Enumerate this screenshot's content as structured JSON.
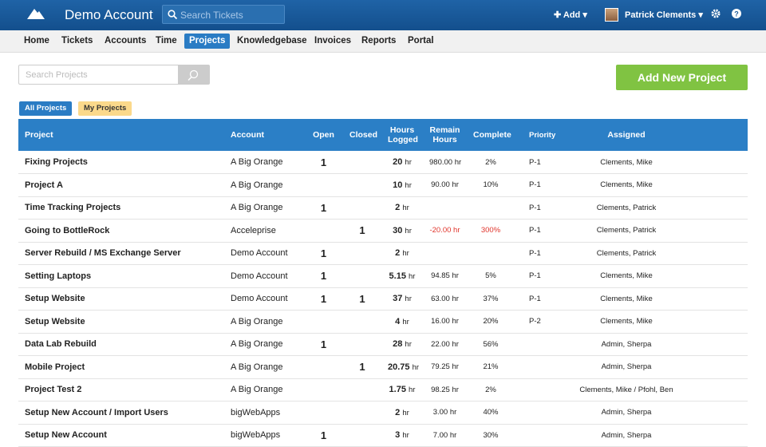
{
  "header": {
    "account": "Demo Account",
    "search_placeholder": "Search Tickets",
    "add": "Add",
    "user": "Patrick Clements"
  },
  "nav": [
    "Home",
    "Tickets",
    "Accounts",
    "Time",
    "Projects",
    "Knowledgebase",
    "Invoices",
    "Reports",
    "Portal"
  ],
  "search_placeholder": "Search Projects",
  "add_button": "Add New Project",
  "filters": [
    "All Projects",
    "My Projects"
  ],
  "table": {
    "columns": [
      "Project",
      "Account",
      "Open",
      "Closed",
      "Hours Logged",
      "Remain Hours",
      "Complete",
      "Priority",
      "Assigned"
    ],
    "rows": [
      [
        "Fixing Projects",
        "A Big Orange",
        "1",
        null,
        "20",
        "hr",
        "980.00 hr",
        "2%",
        "P-1",
        "Clements, Mike"
      ],
      [
        "Project A",
        "A Big Orange",
        null,
        null,
        "10",
        "hr",
        "90.00 hr",
        "10%",
        "P-1",
        "Clements, Mike"
      ],
      [
        "Time Tracking Projects",
        "A Big Orange",
        "1",
        null,
        "2",
        "hr",
        null,
        null,
        "P-1",
        "Clements, Patrick"
      ],
      [
        "Going to BottleRock",
        "Acceleprise",
        null,
        "1",
        "30",
        "hr",
        "-20.00 hr",
        "300%",
        "P-1",
        "Clements, Patrick"
      ],
      [
        "Server Rebuild / MS Exchange Server",
        "Demo Account",
        "1",
        null,
        "2",
        "hr",
        null,
        null,
        "P-1",
        "Clements, Patrick"
      ],
      [
        "Setting Laptops",
        "Demo Account",
        "1",
        null,
        "5.15",
        "hr",
        "94.85 hr",
        "5%",
        "P-1",
        "Clements, Mike"
      ],
      [
        "Setup Website",
        "Demo Account",
        "1",
        "1",
        "37",
        "hr",
        "63.00 hr",
        "37%",
        "P-1",
        "Clements, Mike"
      ],
      [
        "Setup Website",
        "A Big Orange",
        null,
        null,
        "4",
        "hr",
        "16.00 hr",
        "20%",
        "P-2",
        "Clements, Mike"
      ],
      [
        "Data Lab Rebuild",
        "A Big Orange",
        "1",
        null,
        "28",
        "hr",
        "22.00 hr",
        "56%",
        null,
        "Admin, Sherpa"
      ],
      [
        "Mobile Project",
        "A Big Orange",
        null,
        "1",
        "20.75",
        "hr",
        "79.25 hr",
        "21%",
        null,
        "Admin, Sherpa"
      ],
      [
        "Project Test 2",
        "A Big Orange",
        null,
        null,
        "1.75",
        "hr",
        "98.25 hr",
        "2%",
        null,
        "Clements, Mike / Pfohl, Ben"
      ],
      [
        "Setup New Account / Import Users",
        "bigWebApps",
        null,
        null,
        "2",
        "hr",
        "3.00 hr",
        "40%",
        null,
        "Admin, Sherpa"
      ],
      [
        "Setup New Account",
        "bigWebApps",
        "1",
        null,
        "3",
        "hr",
        "7.00 hr",
        "30%",
        null,
        "Admin, Sherpa"
      ]
    ]
  }
}
